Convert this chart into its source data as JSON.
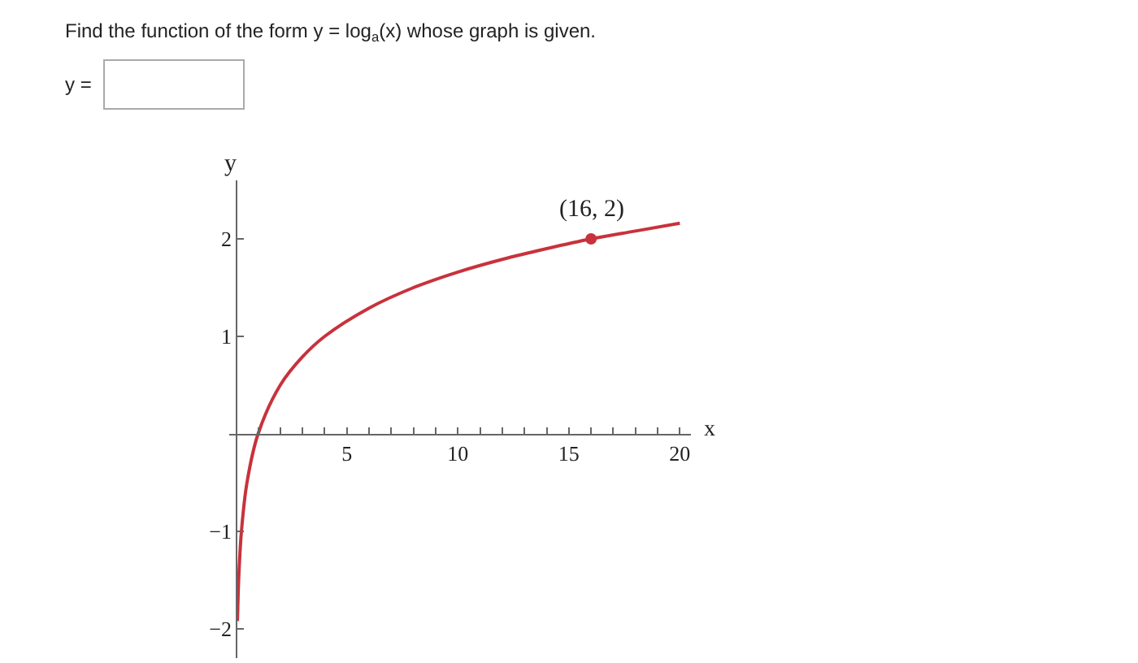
{
  "chart_data": {
    "type": "line",
    "title": "Find the function of the form y = log$_{a}$(x) whose graph is given.",
    "annotations": [
      "y =",
      {
        "text": "(16, 2)",
        "x": 16,
        "y": 2
      }
    ],
    "xlabel": "x",
    "ylabel": "y",
    "series": [
      {
        "marker": "none",
        "color": "#c8323c",
        "x": [
          0.07,
          0.1,
          0.15,
          0.25,
          0.5,
          1,
          2,
          3,
          4,
          6,
          8,
          10,
          12,
          14,
          16,
          18,
          20
        ],
        "values": [
          -1.92,
          -1.66,
          -1.37,
          -1,
          -0.5,
          0,
          0.5,
          0.79,
          1,
          1.29,
          1.5,
          1.66,
          1.79,
          1.9,
          2,
          2.08,
          2.16
        ]
      },
      {
        "type": "scatter",
        "marker": "circle",
        "color": "#c8323c",
        "x": [
          16
        ],
        "values": [
          2
        ]
      }
    ],
    "xlim": [
      -0.3,
      20.5
    ],
    "ylim": [
      -2.3,
      2.6
    ],
    "xticks": [
      {
        "value": 1,
        "label": null
      },
      {
        "value": 2,
        "label": null
      },
      {
        "value": 3,
        "label": null
      },
      {
        "value": 4,
        "label": null
      },
      5,
      {
        "value": 6,
        "label": null
      },
      {
        "value": 7,
        "label": null
      },
      {
        "value": 8,
        "label": null
      },
      {
        "value": 9,
        "label": null
      },
      10,
      {
        "value": 11,
        "label": null
      },
      {
        "value": 12,
        "label": null
      },
      {
        "value": 13,
        "label": null
      },
      {
        "value": 14,
        "label": null
      },
      15,
      {
        "value": 16,
        "label": null
      },
      {
        "value": 17,
        "label": null
      },
      {
        "value": 18,
        "label": null
      },
      {
        "value": 19,
        "label": null
      },
      20
    ],
    "yticks": [
      -2,
      -1,
      1,
      2
    ],
    "line_style": "solid"
  }
}
